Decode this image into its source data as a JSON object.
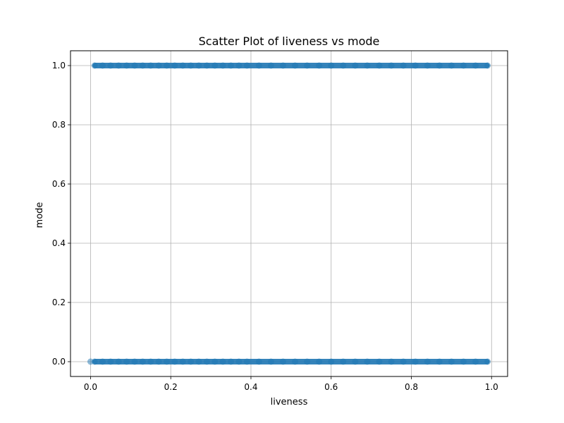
{
  "chart_data": {
    "type": "scatter",
    "title": "Scatter Plot of liveness vs mode",
    "xlabel": "liveness",
    "ylabel": "mode",
    "xlim": [
      -0.05,
      1.04
    ],
    "ylim": [
      -0.05,
      1.05
    ],
    "xticks": [
      0.0,
      0.2,
      0.4,
      0.6,
      0.8,
      1.0
    ],
    "xtick_labels": [
      "0.0",
      "0.2",
      "0.4",
      "0.6",
      "0.8",
      "1.0"
    ],
    "yticks": [
      0.0,
      0.2,
      0.4,
      0.6,
      0.8,
      1.0
    ],
    "ytick_labels": [
      "0.0",
      "0.2",
      "0.4",
      "0.6",
      "0.8",
      "1.0"
    ],
    "grid": true,
    "marker_color": "#1f77b4",
    "marker_alpha": 0.5,
    "series": [
      {
        "points": [
          {
            "x": 0.0,
            "y": 0
          },
          {
            "x": 0.01,
            "y": 0
          },
          {
            "x": 0.03,
            "y": 0
          },
          {
            "x": 0.05,
            "y": 0
          },
          {
            "x": 0.07,
            "y": 0
          },
          {
            "x": 0.09,
            "y": 0
          },
          {
            "x": 0.11,
            "y": 0
          },
          {
            "x": 0.13,
            "y": 0
          },
          {
            "x": 0.15,
            "y": 0
          },
          {
            "x": 0.17,
            "y": 0
          },
          {
            "x": 0.19,
            "y": 0
          },
          {
            "x": 0.21,
            "y": 0
          },
          {
            "x": 0.23,
            "y": 0
          },
          {
            "x": 0.25,
            "y": 0
          },
          {
            "x": 0.27,
            "y": 0
          },
          {
            "x": 0.29,
            "y": 0
          },
          {
            "x": 0.31,
            "y": 0
          },
          {
            "x": 0.33,
            "y": 0
          },
          {
            "x": 0.35,
            "y": 0
          },
          {
            "x": 0.37,
            "y": 0
          },
          {
            "x": 0.39,
            "y": 0
          },
          {
            "x": 0.42,
            "y": 0
          },
          {
            "x": 0.45,
            "y": 0
          },
          {
            "x": 0.48,
            "y": 0
          },
          {
            "x": 0.51,
            "y": 0
          },
          {
            "x": 0.54,
            "y": 0
          },
          {
            "x": 0.57,
            "y": 0
          },
          {
            "x": 0.6,
            "y": 0
          },
          {
            "x": 0.63,
            "y": 0
          },
          {
            "x": 0.66,
            "y": 0
          },
          {
            "x": 0.69,
            "y": 0
          },
          {
            "x": 0.72,
            "y": 0
          },
          {
            "x": 0.75,
            "y": 0
          },
          {
            "x": 0.78,
            "y": 0
          },
          {
            "x": 0.81,
            "y": 0
          },
          {
            "x": 0.84,
            "y": 0
          },
          {
            "x": 0.87,
            "y": 0
          },
          {
            "x": 0.9,
            "y": 0
          },
          {
            "x": 0.93,
            "y": 0
          },
          {
            "x": 0.96,
            "y": 0
          },
          {
            "x": 0.99,
            "y": 0
          },
          {
            "x": 0.01,
            "y": 1
          },
          {
            "x": 0.03,
            "y": 1
          },
          {
            "x": 0.05,
            "y": 1
          },
          {
            "x": 0.07,
            "y": 1
          },
          {
            "x": 0.09,
            "y": 1
          },
          {
            "x": 0.11,
            "y": 1
          },
          {
            "x": 0.13,
            "y": 1
          },
          {
            "x": 0.15,
            "y": 1
          },
          {
            "x": 0.17,
            "y": 1
          },
          {
            "x": 0.19,
            "y": 1
          },
          {
            "x": 0.21,
            "y": 1
          },
          {
            "x": 0.23,
            "y": 1
          },
          {
            "x": 0.25,
            "y": 1
          },
          {
            "x": 0.27,
            "y": 1
          },
          {
            "x": 0.29,
            "y": 1
          },
          {
            "x": 0.31,
            "y": 1
          },
          {
            "x": 0.33,
            "y": 1
          },
          {
            "x": 0.35,
            "y": 1
          },
          {
            "x": 0.37,
            "y": 1
          },
          {
            "x": 0.39,
            "y": 1
          },
          {
            "x": 0.42,
            "y": 1
          },
          {
            "x": 0.45,
            "y": 1
          },
          {
            "x": 0.48,
            "y": 1
          },
          {
            "x": 0.51,
            "y": 1
          },
          {
            "x": 0.54,
            "y": 1
          },
          {
            "x": 0.57,
            "y": 1
          },
          {
            "x": 0.6,
            "y": 1
          },
          {
            "x": 0.63,
            "y": 1
          },
          {
            "x": 0.66,
            "y": 1
          },
          {
            "x": 0.69,
            "y": 1
          },
          {
            "x": 0.72,
            "y": 1
          },
          {
            "x": 0.75,
            "y": 1
          },
          {
            "x": 0.78,
            "y": 1
          },
          {
            "x": 0.81,
            "y": 1
          },
          {
            "x": 0.84,
            "y": 1
          },
          {
            "x": 0.87,
            "y": 1
          },
          {
            "x": 0.9,
            "y": 1
          },
          {
            "x": 0.93,
            "y": 1
          },
          {
            "x": 0.96,
            "y": 1
          },
          {
            "x": 0.99,
            "y": 1
          }
        ]
      }
    ]
  }
}
